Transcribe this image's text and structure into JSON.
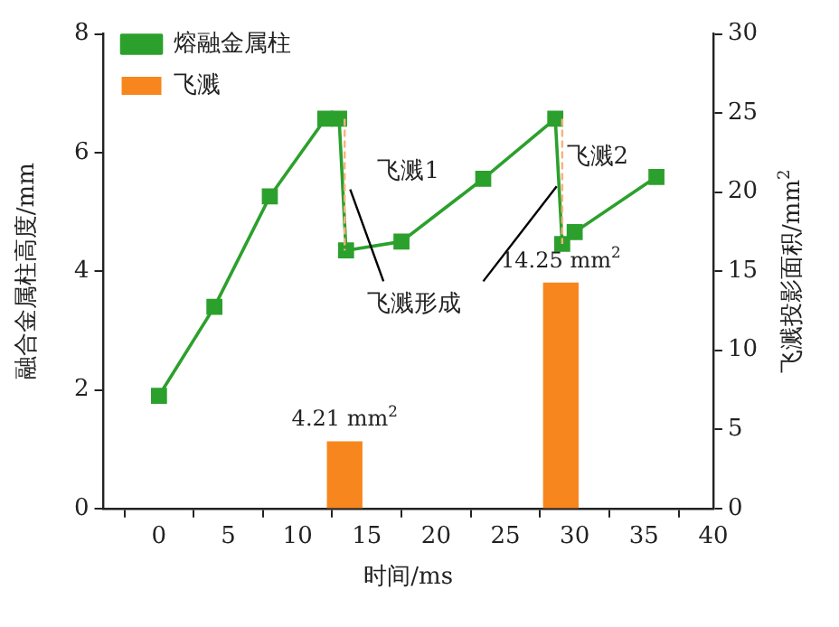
{
  "chart_data": {
    "type": "line",
    "xlabel": "时间/ms",
    "ylabel": "融合金属柱高度/mm",
    "y2label": "飞溅投影面积/mm$^{2}$",
    "xlim": [
      -4,
      40
    ],
    "xticks": [
      0,
      5,
      10,
      15,
      20,
      25,
      30,
      35,
      40
    ],
    "ylim": [
      0,
      8
    ],
    "yticks": [
      0,
      2,
      4,
      6,
      8
    ],
    "y2lim": [
      0,
      30
    ],
    "y2ticks": [
      0,
      5,
      10,
      15,
      20,
      25,
      30
    ],
    "grid": false,
    "legend": "top left",
    "series": [
      {
        "name": "熔融金属柱",
        "color": "#2ca02c",
        "marker": "square",
        "line_style": "solid",
        "x": [
          0,
          4,
          8,
          12,
          13,
          13.5,
          17.5,
          23.4,
          28.6,
          29.1,
          30,
          35.9
        ],
        "values": [
          1.9,
          3.4,
          5.26,
          6.57,
          6.57,
          4.35,
          4.5,
          5.56,
          6.57,
          4.46,
          4.66,
          5.59
        ]
      },
      {
        "name": "飞溅",
        "type": "bar",
        "axis": "y2",
        "color": "#f7861e",
        "x": [
          13.4,
          29
        ],
        "values": [
          4.21,
          14.25
        ],
        "value_labels": [
          "4.21 mm$^{2}$",
          "14.25 mm$^{2}$"
        ]
      },
      {
        "type": "line",
        "color": "#f9b27a",
        "marker": "none",
        "line_style": "dashed",
        "x": [
          13.4,
          13.4
        ],
        "values": [
          6.57,
          4.35
        ]
      },
      {
        "type": "line",
        "color": "#f9b27a",
        "marker": "none",
        "line_style": "dashed",
        "x": [
          29.1,
          29.1
        ],
        "values": [
          6.57,
          4.46
        ]
      },
      {
        "type": "line",
        "color": "#000000",
        "marker": "none",
        "line_style": "solid",
        "x": [
          13.8,
          16.2
        ],
        "values": [
          5.38,
          3.83
        ]
      },
      {
        "type": "line",
        "color": "#000000",
        "marker": "none",
        "line_style": "solid",
        "x": [
          23.4,
          28.7
        ],
        "values": [
          3.83,
          5.43
        ]
      }
    ],
    "annotations": [
      "飞溅1",
      "飞溅2",
      "飞溅形成"
    ]
  }
}
